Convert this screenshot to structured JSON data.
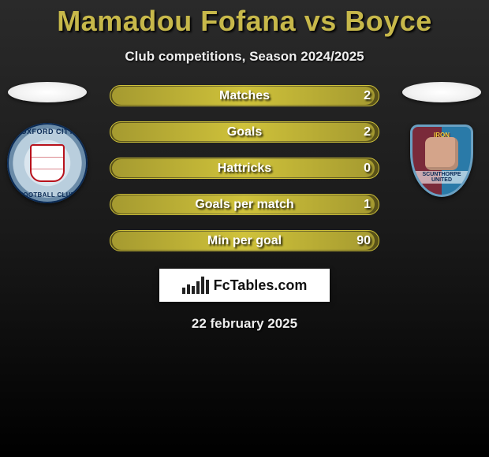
{
  "title": "Mamadou Fofana vs Boyce",
  "subtitle": "Club competitions, Season 2024/2025",
  "date": "22 february 2025",
  "logo_text": "FcTables.com",
  "logo_bar_heights": [
    8,
    12,
    10,
    16,
    22,
    18
  ],
  "colors": {
    "title": "#c7b84a",
    "bar_track_start": "#575018",
    "bar_track_mid": "#878038",
    "bar_fill_start": "#a59a30",
    "bar_fill_mid": "#cfc23a",
    "bar_border": "#cfc23a",
    "background_top": "#2a2a2a",
    "text_white": "#ffffff"
  },
  "left_team": {
    "name": "Oxford City",
    "crest_top_text": "OXFORD CITY",
    "crest_bottom_text": "FOOTBALL CLUB",
    "crest_ring_color": "#6a8ba8",
    "crest_inner_color": "#dbe6ef",
    "crest_accent": "#b8121c"
  },
  "right_team": {
    "name": "Scunthorpe United",
    "crest_top_text": "IRON",
    "crest_bottom_text": "SCUNTHORPE UNITED",
    "crest_left_color": "#7a2a3a",
    "crest_right_color": "#2a7aa8",
    "crest_border": "#6aa0c2"
  },
  "stats": [
    {
      "label": "Matches",
      "right_value": "2",
      "fill_pct": 98
    },
    {
      "label": "Goals",
      "right_value": "2",
      "fill_pct": 98
    },
    {
      "label": "Hattricks",
      "right_value": "0",
      "fill_pct": 98
    },
    {
      "label": "Goals per match",
      "right_value": "1",
      "fill_pct": 98
    },
    {
      "label": "Min per goal",
      "right_value": "90",
      "fill_pct": 98
    }
  ]
}
